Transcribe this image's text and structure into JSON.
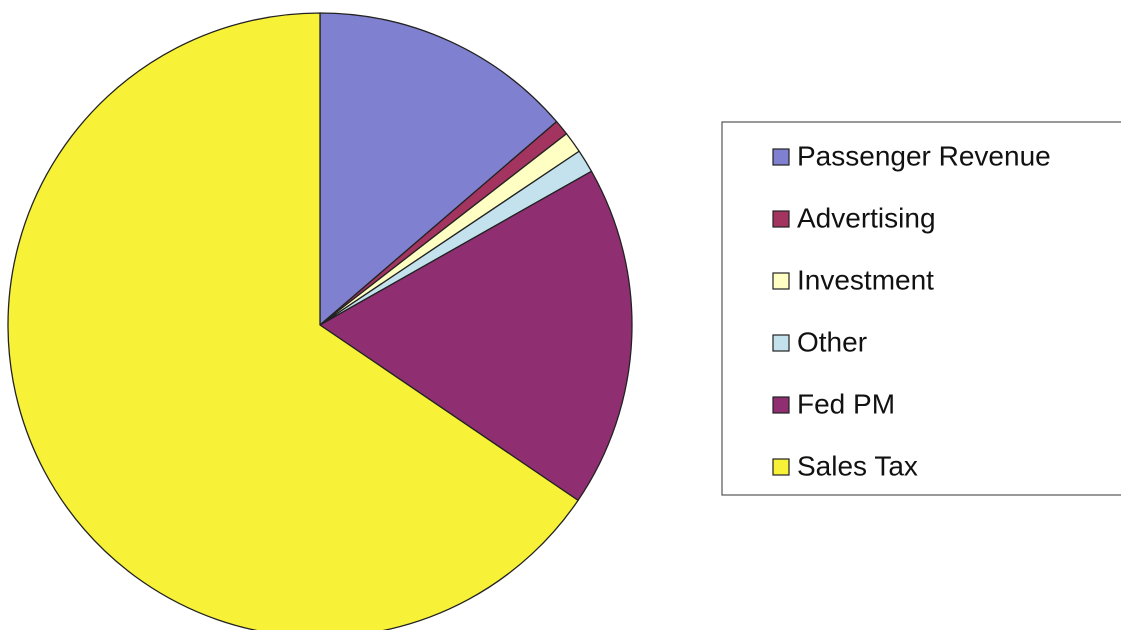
{
  "chart_data": {
    "type": "pie",
    "categories": [
      "Passenger Revenue",
      "Advertising",
      "Investment",
      "Other",
      "Fed PM",
      "Sales Tax"
    ],
    "values": [
      13.7,
      0.8,
      1.1,
      1.2,
      17.7,
      65.5
    ],
    "colors": [
      "#8080d0",
      "#a3335f",
      "#ffffc4",
      "#c4e2ee",
      "#8f2f72",
      "#f7f238"
    ],
    "legend": "right"
  }
}
